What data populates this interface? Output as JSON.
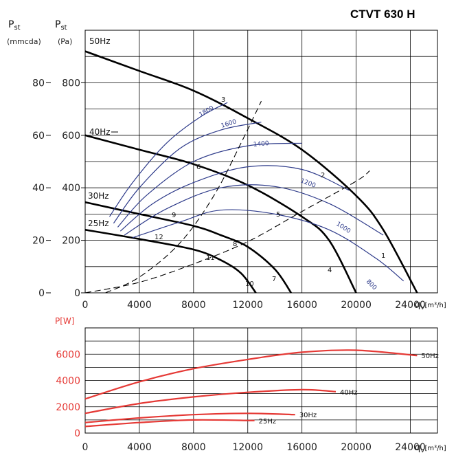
{
  "title": "CTVT 630 H",
  "colors": {
    "fan": "#000000",
    "rpm": "#2e3b8a",
    "power": "#e53935",
    "grid": "#000000"
  },
  "top_axes": {
    "ylabel_left_main": "P",
    "ylabel_left_sub": "st",
    "ylabel_left_unit": "(mmcda)",
    "ylabel_right_main": "P",
    "ylabel_right_sub": "st",
    "ylabel_right_unit": "(Pa)",
    "xlabel_main": "q",
    "xlabel_sub": "V",
    "xlabel_unit": "[m³/h]",
    "mmcda_ticks": [
      "80",
      "60",
      "40",
      "20",
      "0"
    ],
    "pa_ticks": [
      "800",
      "600",
      "400",
      "200",
      "0"
    ],
    "x_ticks": [
      "0",
      "4000",
      "8000",
      "12000",
      "16000",
      "20000",
      "24000"
    ]
  },
  "bottom_axes": {
    "ylabel": "P[W]",
    "y_ticks": [
      "6000",
      "4000",
      "2000",
      "0"
    ],
    "xlabel_main": "q",
    "xlabel_sub": "V",
    "xlabel_unit": "[m³/h]",
    "x_ticks": [
      "0",
      "4000",
      "8000",
      "12000",
      "16000",
      "20000",
      "24000"
    ]
  },
  "chart_data": [
    {
      "type": "line",
      "title": "CTVT 630 H",
      "xlabel": "qV [m³/h]",
      "ylabel": "Pst (Pa)",
      "xlim": [
        0,
        26000
      ],
      "ylim": [
        0,
        1000
      ],
      "grid": true,
      "series": [
        {
          "name": "50Hz",
          "kind": "fan",
          "points": [
            [
              0,
              920
            ],
            [
              4000,
              845
            ],
            [
              8000,
              770
            ],
            [
              12000,
              665
            ],
            [
              16000,
              545
            ],
            [
              20000,
              370
            ],
            [
              22000,
              240
            ],
            [
              24500,
              0
            ]
          ]
        },
        {
          "name": "40Hz",
          "kind": "fan",
          "points": [
            [
              0,
              600
            ],
            [
              4000,
              545
            ],
            [
              8000,
              490
            ],
            [
              12000,
              410
            ],
            [
              16000,
              290
            ],
            [
              18000,
              200
            ],
            [
              20000,
              0
            ]
          ]
        },
        {
          "name": "30Hz",
          "kind": "fan",
          "points": [
            [
              0,
              345
            ],
            [
              4000,
              300
            ],
            [
              8000,
              255
            ],
            [
              10000,
              220
            ],
            [
              12000,
              175
            ],
            [
              14000,
              90
            ],
            [
              15200,
              0
            ]
          ]
        },
        {
          "name": "25Hz",
          "kind": "fan",
          "points": [
            [
              0,
              240
            ],
            [
              4000,
              205
            ],
            [
              8000,
              165
            ],
            [
              10000,
              125
            ],
            [
              11500,
              75
            ],
            [
              12600,
              0
            ]
          ]
        },
        {
          "name": "1800",
          "kind": "rpm",
          "points": [
            [
              1800,
              290
            ],
            [
              3500,
              420
            ],
            [
              6000,
              570
            ],
            [
              8500,
              670
            ],
            [
              10500,
              725
            ]
          ]
        },
        {
          "name": "1600",
          "kind": "rpm",
          "points": [
            [
              2100,
              265
            ],
            [
              4000,
              400
            ],
            [
              7000,
              550
            ],
            [
              10000,
              620
            ],
            [
              13000,
              650
            ]
          ]
        },
        {
          "name": "1400",
          "kind": "rpm",
          "points": [
            [
              2400,
              250
            ],
            [
              4500,
              370
            ],
            [
              8000,
              500
            ],
            [
              12000,
              560
            ],
            [
              16000,
              570
            ]
          ]
        },
        {
          "name": "1200",
          "kind": "rpm",
          "points": [
            [
              2600,
              235
            ],
            [
              5000,
              340
            ],
            [
              8000,
              420
            ],
            [
              12000,
              480
            ],
            [
              16000,
              470
            ],
            [
              19500,
              390
            ]
          ]
        },
        {
          "name": "1000",
          "kind": "rpm",
          "points": [
            [
              2900,
              220
            ],
            [
              6000,
              320
            ],
            [
              10000,
              400
            ],
            [
              14000,
              405
            ],
            [
              18000,
              340
            ],
            [
              22000,
              220
            ]
          ]
        },
        {
          "name": "800",
          "kind": "rpm",
          "points": [
            [
              3500,
              210
            ],
            [
              7000,
              270
            ],
            [
              10000,
              315
            ],
            [
              14000,
              300
            ],
            [
              18000,
              240
            ],
            [
              21500,
              130
            ],
            [
              23500,
              45
            ]
          ]
        },
        {
          "name": "system-low",
          "kind": "system",
          "points": [
            [
              0,
              0
            ],
            [
              4000,
              40
            ],
            [
              8000,
              110
            ],
            [
              12000,
              195
            ],
            [
              16000,
              310
            ],
            [
              20000,
              425
            ],
            [
              21000,
              465
            ]
          ]
        },
        {
          "name": "system-high",
          "kind": "system",
          "points": [
            [
              1500,
              0
            ],
            [
              4000,
              60
            ],
            [
              7000,
              190
            ],
            [
              9500,
              370
            ],
            [
              11500,
              570
            ],
            [
              13000,
              730
            ]
          ]
        }
      ],
      "annotations": {
        "rpm_labels": [
          "1800",
          "1600",
          "1400",
          "1200",
          "1000",
          "800"
        ],
        "operating_points": [
          "1",
          "2",
          "3",
          "4",
          "5",
          "6",
          "7",
          "8",
          "9",
          "10",
          "11",
          "12"
        ]
      }
    },
    {
      "type": "line",
      "xlabel": "qV [m³/h]",
      "ylabel": "P[W]",
      "xlim": [
        0,
        26000
      ],
      "ylim": [
        0,
        8000
      ],
      "grid": true,
      "series": [
        {
          "name": "50Hz",
          "points": [
            [
              0,
              2600
            ],
            [
              4000,
              3900
            ],
            [
              8000,
              4900
            ],
            [
              12000,
              5600
            ],
            [
              16000,
              6150
            ],
            [
              20000,
              6300
            ],
            [
              24500,
              5900
            ]
          ]
        },
        {
          "name": "40Hz",
          "points": [
            [
              0,
              1500
            ],
            [
              4000,
              2250
            ],
            [
              8000,
              2750
            ],
            [
              12000,
              3100
            ],
            [
              16000,
              3300
            ],
            [
              18500,
              3150
            ]
          ]
        },
        {
          "name": "30Hz",
          "points": [
            [
              0,
              800
            ],
            [
              4000,
              1150
            ],
            [
              8000,
              1400
            ],
            [
              12000,
              1500
            ],
            [
              15500,
              1400
            ]
          ]
        },
        {
          "name": "25Hz",
          "points": [
            [
              0,
              500
            ],
            [
              4000,
              800
            ],
            [
              8000,
              1000
            ],
            [
              12500,
              950
            ]
          ]
        }
      ]
    }
  ]
}
